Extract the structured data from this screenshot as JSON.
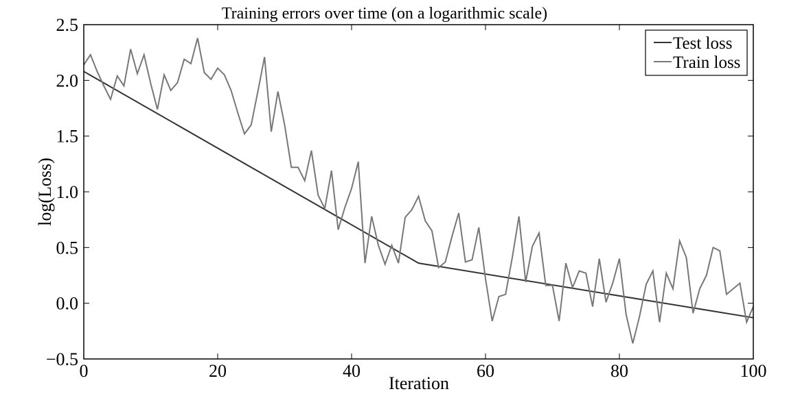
{
  "chart_data": {
    "type": "line",
    "title": "Training errors over time (on a logarithmic scale)",
    "x_label": "Iteration",
    "y_label": "log(Loss)",
    "xlim": [
      0,
      100
    ],
    "ylim": [
      -0.5,
      2.5
    ],
    "xticks": [
      0,
      20,
      40,
      60,
      80,
      100
    ],
    "yticks": [
      {
        "value": -0.5,
        "label": "−0.5"
      },
      {
        "value": 0,
        "label": "0.0"
      },
      {
        "value": 0.5,
        "label": "0.5"
      },
      {
        "value": 1,
        "label": "1.0"
      },
      {
        "value": 1.5,
        "label": "1.5"
      },
      {
        "value": 2,
        "label": "2.0"
      },
      {
        "value": 2.5,
        "label": "2.5"
      }
    ],
    "legend": "upper right",
    "series": [
      {
        "name": "Test loss",
        "color": "#333333",
        "x": [
          0,
          50,
          100
        ],
        "values": [
          2.08,
          0.36,
          -0.13
        ]
      },
      {
        "name": "Train loss",
        "color": "#777777",
        "x": [
          0,
          1,
          2,
          3,
          4,
          5,
          6,
          7,
          8,
          9,
          10,
          11,
          12,
          13,
          14,
          15,
          16,
          17,
          18,
          19,
          20,
          21,
          22,
          23,
          24,
          25,
          26,
          27,
          28,
          29,
          30,
          31,
          32,
          33,
          34,
          35,
          36,
          37,
          38,
          39,
          40,
          41,
          42,
          43,
          44,
          45,
          46,
          47,
          48,
          49,
          50,
          51,
          52,
          53,
          54,
          55,
          56,
          57,
          58,
          59,
          60,
          61,
          62,
          63,
          64,
          65,
          66,
          67,
          68,
          69,
          70,
          71,
          72,
          73,
          74,
          75,
          76,
          77,
          78,
          79,
          80,
          81,
          82,
          83,
          84,
          85,
          86,
          87,
          88,
          89,
          90,
          91,
          92,
          93,
          94,
          95,
          96,
          97,
          98,
          99,
          100
        ],
        "values": [
          2.14,
          2.23,
          2.08,
          1.95,
          1.83,
          2.04,
          1.95,
          2.28,
          2.06,
          2.23,
          1.97,
          1.74,
          2.05,
          1.91,
          1.98,
          2.19,
          2.15,
          2.38,
          2.07,
          2.01,
          2.11,
          2.05,
          1.91,
          1.71,
          1.52,
          1.6,
          1.9,
          2.21,
          1.54,
          1.9,
          1.6,
          1.22,
          1.22,
          1.1,
          1.37,
          0.97,
          0.85,
          1.19,
          0.66,
          0.86,
          1.03,
          1.27,
          0.36,
          0.78,
          0.52,
          0.35,
          0.52,
          0.36,
          0.77,
          0.84,
          0.96,
          0.74,
          0.65,
          0.32,
          0.37,
          0.6,
          0.81,
          0.37,
          0.39,
          0.68,
          0.22,
          -0.16,
          0.06,
          0.08,
          0.41,
          0.78,
          0.19,
          0.51,
          0.63,
          0.16,
          0.16,
          -0.16,
          0.36,
          0.14,
          0.29,
          0.27,
          -0.03,
          0.4,
          0.01,
          0.18,
          0.4,
          -0.1,
          -0.36,
          -0.12,
          0.17,
          0.29,
          -0.17,
          0.27,
          0.13,
          0.56,
          0.41,
          -0.09,
          0.13,
          0.25,
          0.5,
          0.47,
          0.08,
          0.13,
          0.18,
          -0.17,
          -0.03
        ]
      }
    ]
  }
}
